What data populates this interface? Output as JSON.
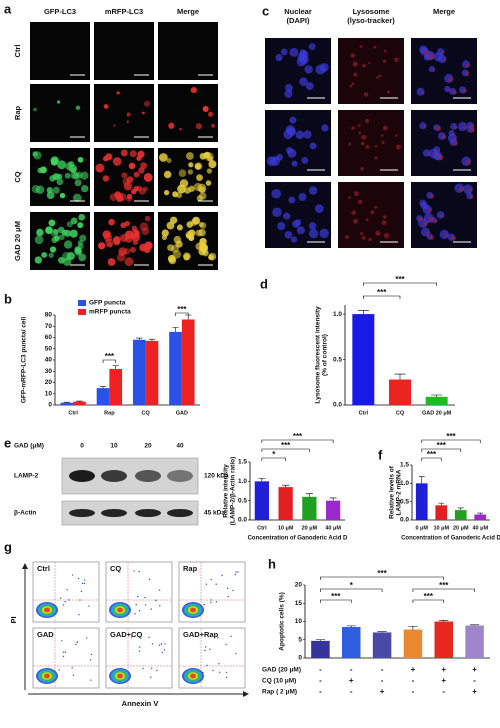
{
  "panel_a": {
    "label": "a",
    "columns": [
      "GFP-LC3",
      "mRFP-LC3",
      "Merge"
    ],
    "rows": [
      "Ctrl",
      "Rap",
      "CQ",
      "GAD 20 μM"
    ]
  },
  "panel_c": {
    "label": "c",
    "columns": [
      [
        "Nuclear",
        "(DAPI)"
      ],
      [
        "Lysosome",
        "(lyso-tracker)"
      ],
      [
        "Merge"
      ]
    ]
  },
  "panel_e": {
    "label": "e",
    "header": "GAD (μM)",
    "lanes": [
      "0",
      "10",
      "20",
      "40"
    ],
    "bands": [
      {
        "name": "LAMP-2",
        "size": "120 kDa"
      },
      {
        "name": "β-Actin",
        "size": "45 kDa"
      }
    ]
  },
  "panel_g": {
    "label": "g",
    "plots": [
      "Ctrl",
      "CQ",
      "Rap",
      "GAD",
      "GAD+CQ",
      "GAD+Rap"
    ],
    "ylabel": "PI",
    "xlabel": "Annexin V"
  },
  "chart_data": [
    {
      "type": "bar",
      "panel": "b",
      "ylabel": [
        "GFP-mRFP-LC3 puncta/ cell"
      ],
      "categories": [
        "Ctrl",
        "Rap",
        "CQ",
        "GAD"
      ],
      "series": [
        {
          "name": "GFP puncta",
          "color": "#2a52e8",
          "values": [
            2,
            15,
            58,
            65
          ],
          "errors": [
            0.5,
            1.5,
            1.5,
            4
          ]
        },
        {
          "name": "mRFP puncta",
          "color": "#ee2222",
          "values": [
            3,
            32,
            57,
            76
          ],
          "errors": [
            0.5,
            3,
            1.5,
            4
          ]
        }
      ],
      "ylim": [
        0,
        80
      ],
      "yticks": [
        0,
        10,
        20,
        30,
        40,
        50,
        60,
        70,
        80
      ],
      "annotations": [
        "***",
        "***"
      ]
    },
    {
      "type": "bar",
      "panel": "d",
      "ylabel": [
        "Lysosome fluorescent intensity",
        "(% of control)"
      ],
      "categories": [
        "Ctrl",
        "CQ",
        "GAD 20 μM"
      ],
      "values": [
        1.0,
        0.28,
        0.09
      ],
      "errors": [
        0.04,
        0.06,
        0.02
      ],
      "colors": [
        "#1a1ae6",
        "#e8251e",
        "#22b922"
      ],
      "ylim": [
        0,
        1.1
      ],
      "yticks": [
        {
          "value": 0,
          "label": "0.0"
        },
        0.5,
        {
          "value": 1,
          "label": "1.0"
        }
      ],
      "annotations": [
        "***",
        "***"
      ]
    },
    {
      "type": "bar",
      "ylabel": [
        "Relative intensity",
        "(LAMP-2/β-Actin ratio)"
      ],
      "xlabel": "Concentration of Ganoderic Acid D",
      "categories": [
        "Ctrl",
        "10 μM",
        "20 μM",
        "40 μM"
      ],
      "values": [
        1.0,
        0.85,
        0.6,
        0.5
      ],
      "errors": [
        0.08,
        0.05,
        0.08,
        0.07
      ],
      "colors": [
        "#2020d8",
        "#e02020",
        "#20a020",
        "#9a2ad0"
      ],
      "ylim": [
        0,
        1.5
      ],
      "yticks": [
        {
          "value": 0,
          "label": "0.0"
        },
        0.5,
        {
          "value": 1,
          "label": "1.0"
        },
        1.5
      ],
      "annotations": [
        "*",
        "***",
        "***"
      ]
    },
    {
      "type": "bar",
      "panel": "f",
      "ylabel": [
        "Relative levels of",
        "LAMP-2 mRNA"
      ],
      "xlabel": "Concentration of Ganoderic Acid D",
      "categories": [
        "0 μM",
        "10 μM",
        "20 μM",
        "40 μM"
      ],
      "values": [
        1.0,
        0.4,
        0.27,
        0.15
      ],
      "errors": [
        0.18,
        0.06,
        0.06,
        0.04
      ],
      "colors": [
        "#2020d8",
        "#e02020",
        "#20a020",
        "#9a2ad0"
      ],
      "ylim": [
        0,
        1.5
      ],
      "yticks": [
        {
          "value": 0,
          "label": "0.0"
        },
        0.5,
        {
          "value": 1,
          "label": "1.0"
        },
        1.5
      ],
      "annotations": [
        "***",
        "***",
        "***"
      ]
    },
    {
      "type": "bar",
      "panel": "h",
      "ylabel": [
        "Apoptotic cells (%)"
      ],
      "values": [
        4.7,
        8.5,
        7.0,
        7.8,
        10.0,
        8.9
      ],
      "errors": [
        0.3,
        0.3,
        0.2,
        0.9,
        0.3,
        0.2
      ],
      "colors": [
        "#34349a",
        "#2f5ee0",
        "#4a4aa6",
        "#e98a33",
        "#e8281e",
        "#9f86cc"
      ],
      "ylim": [
        0,
        20
      ],
      "yticks": [
        0,
        5,
        10,
        15,
        20
      ],
      "annotations": [
        "***",
        "*",
        "***",
        "***",
        "***"
      ],
      "conditions": [
        {
          "name": "GAD (20 μM)",
          "signs": [
            "-",
            "-",
            "-",
            "+",
            "+",
            "+"
          ]
        },
        {
          "name": "CQ  (10 μM)",
          "signs": [
            "-",
            "+",
            "-",
            "-",
            "+",
            "-"
          ]
        },
        {
          "name": "Rap  ( 2  μM)",
          "signs": [
            "-",
            "-",
            "+",
            "-",
            "-",
            "+"
          ]
        }
      ]
    }
  ]
}
